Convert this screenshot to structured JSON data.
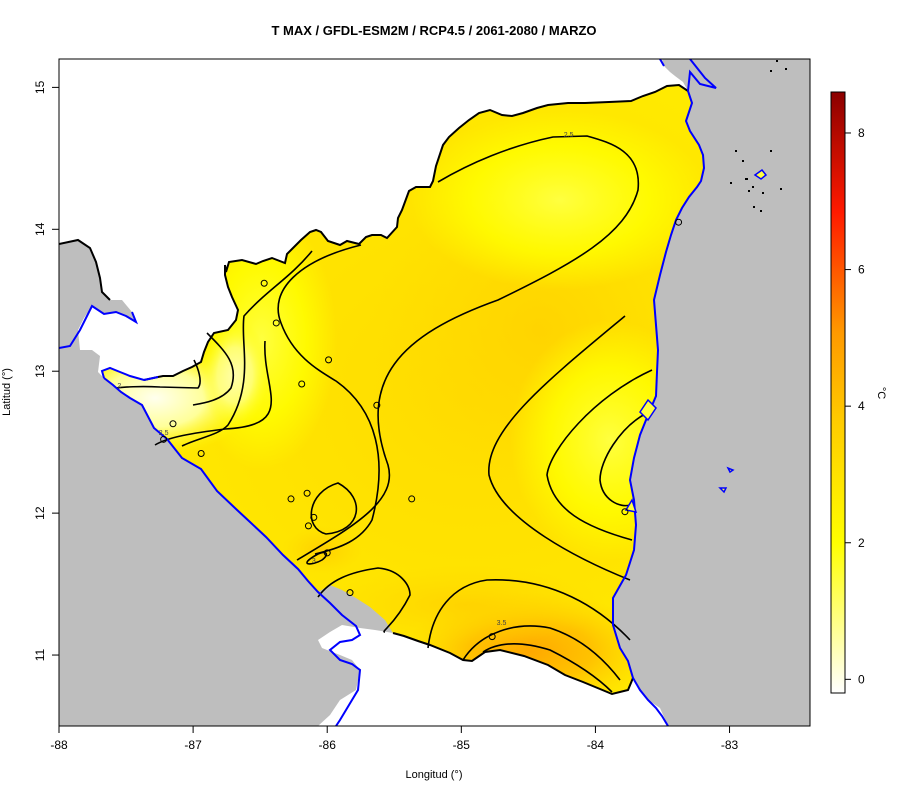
{
  "map": {
    "title": "T MAX / GFDL-ESM2M / RCP4.5 / 2061-2080 / MARZO",
    "xlabel": "Longitud (°)",
    "ylabel": "Latitud (°)",
    "x_ticks": [
      -88,
      -87,
      -86,
      -85,
      -84,
      -83
    ],
    "y_ticks": [
      11,
      12,
      13,
      14,
      15
    ],
    "xlim": [
      -88,
      -82.4
    ],
    "ylim": [
      10.5,
      15.2
    ],
    "colorbar": {
      "label": "°C",
      "ticks": [
        0,
        2,
        4,
        6,
        8
      ],
      "range": [
        -0.2,
        8.6
      ],
      "colors": [
        "#ffffff",
        "#ffff00",
        "#ffd700",
        "#ff8c00",
        "#ff0000",
        "#8b0000"
      ]
    },
    "contour_labels": [
      {
        "text": "2.5",
        "lon": -84.2,
        "lat": 14.65
      },
      {
        "text": "2.5",
        "lon": -87.22,
        "lat": 12.55
      },
      {
        "text": "3",
        "lon": -86.1,
        "lat": 11.65
      },
      {
        "text": "3.5",
        "lon": -84.7,
        "lat": 11.21
      },
      {
        "text": "2",
        "lon": -87.55,
        "lat": 12.88
      }
    ],
    "stations": [
      {
        "lon": -86.47,
        "lat": 13.62
      },
      {
        "lon": -86.38,
        "lat": 13.34
      },
      {
        "lon": -85.99,
        "lat": 13.08
      },
      {
        "lon": -86.19,
        "lat": 12.91
      },
      {
        "lon": -85.63,
        "lat": 12.76
      },
      {
        "lon": -87.15,
        "lat": 12.63
      },
      {
        "lon": -87.22,
        "lat": 12.52
      },
      {
        "lon": -86.94,
        "lat": 12.42
      },
      {
        "lon": -86.27,
        "lat": 12.1
      },
      {
        "lon": -86.15,
        "lat": 12.14
      },
      {
        "lon": -85.37,
        "lat": 12.1
      },
      {
        "lon": -86.1,
        "lat": 11.97
      },
      {
        "lon": -86.14,
        "lat": 11.91
      },
      {
        "lon": -86.0,
        "lat": 11.72
      },
      {
        "lon": -85.83,
        "lat": 11.44
      },
      {
        "lon": -84.77,
        "lat": 11.13
      },
      {
        "lon": -83.78,
        "lat": 12.01
      },
      {
        "lon": -83.38,
        "lat": 14.05
      }
    ],
    "colors": {
      "sea": "#bebebe",
      "coast": "#0000ff",
      "border": "#000000",
      "outside_land": "#ffffff",
      "contour": "#000000"
    }
  }
}
